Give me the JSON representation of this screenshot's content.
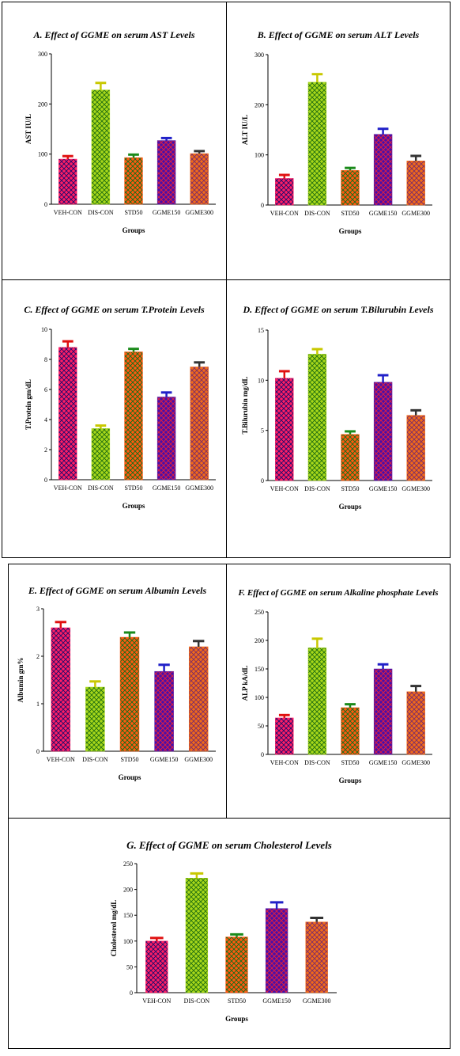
{
  "chart_data": [
    {
      "id": "A",
      "type": "bar",
      "title": "A. Effect of GGME on serum AST Levels",
      "ylabel": "AST IU/L",
      "xlabel": "Groups",
      "categories": [
        "VEH-CON",
        "DIS-CON",
        "STD50",
        "GGME150",
        "GGME300"
      ],
      "values": [
        90,
        228,
        93,
        127,
        101
      ],
      "errors": [
        6,
        14,
        6,
        5,
        5
      ],
      "ylim": [
        0,
        300
      ],
      "yticks": [
        "0",
        "100",
        "200",
        "300"
      ]
    },
    {
      "id": "B",
      "type": "bar",
      "title": "B. Effect of GGME on serum ALT Levels",
      "ylabel": "ALT IU/L",
      "xlabel": "Groups",
      "categories": [
        "VEH-CON",
        "DIS-CON",
        "STD50",
        "GGME150",
        "GGME300"
      ],
      "values": [
        53,
        245,
        69,
        141,
        88
      ],
      "errors": [
        7,
        16,
        5,
        11,
        10
      ],
      "ylim": [
        0,
        300
      ],
      "yticks": [
        "0",
        "100",
        "200",
        "300"
      ]
    },
    {
      "id": "C",
      "type": "bar",
      "title": "C. Effect of GGME on serum T.Protein Levels",
      "ylabel": "T.Protein gm/dL",
      "xlabel": "Groups",
      "categories": [
        "VEH-CON",
        "DIS-CON",
        "STD50",
        "GGME150",
        "GGME300"
      ],
      "values": [
        8.8,
        3.4,
        8.5,
        5.5,
        7.5
      ],
      "errors": [
        0.4,
        0.2,
        0.2,
        0.3,
        0.3
      ],
      "ylim": [
        0,
        10
      ],
      "yticks": [
        "0",
        "2",
        "4",
        "6",
        "8",
        "10"
      ]
    },
    {
      "id": "D",
      "type": "bar",
      "title": "D. Effect of GGME on serum T.Bilurubin Levels",
      "ylabel": "T.Bilurubin mg/dL",
      "xlabel": "Groups",
      "categories": [
        "VEH-CON",
        "DIS-CON",
        "STD50",
        "GGME150",
        "GGME300"
      ],
      "values": [
        10.2,
        12.6,
        4.6,
        9.8,
        6.5
      ],
      "errors": [
        0.7,
        0.5,
        0.3,
        0.7,
        0.5
      ],
      "ylim": [
        0,
        15
      ],
      "yticks": [
        "0",
        "5",
        "10",
        "15"
      ]
    },
    {
      "id": "E",
      "type": "bar",
      "title": "E. Effect of GGME on serum Albumin Levels",
      "ylabel": "Albumin gm%",
      "xlabel": "Groups",
      "categories": [
        "VEH-CON",
        "DIS-CON",
        "STD50",
        "GGME150",
        "GGME300"
      ],
      "values": [
        2.6,
        1.35,
        2.4,
        1.68,
        2.2
      ],
      "errors": [
        0.12,
        0.12,
        0.1,
        0.14,
        0.12
      ],
      "ylim": [
        0,
        3
      ],
      "yticks": [
        "0",
        "1",
        "2",
        "3"
      ]
    },
    {
      "id": "F",
      "type": "bar",
      "title": "F. Effect of GGME on serum Alkaline phosphate Levels",
      "ylabel": "ALP kA/dL",
      "xlabel": "Groups",
      "categories": [
        "VEH-CON",
        "DIS-CON",
        "STD50",
        "GGME150",
        "GGME300"
      ],
      "values": [
        64,
        187,
        82,
        150,
        110
      ],
      "errors": [
        5,
        16,
        6,
        8,
        10
      ],
      "ylim": [
        0,
        250
      ],
      "yticks": [
        "0",
        "50",
        "100",
        "150",
        "200",
        "250"
      ]
    },
    {
      "id": "G",
      "type": "bar",
      "title": "G. Effect of GGME on serum Cholesterol Levels",
      "ylabel": "Cholesterol mg/dL",
      "xlabel": "Groups",
      "categories": [
        "VEH-CON",
        "DIS-CON",
        "STD50",
        "GGME150",
        "GGME300"
      ],
      "values": [
        100,
        222,
        108,
        163,
        137
      ],
      "errors": [
        6,
        9,
        5,
        12,
        8
      ],
      "ylim": [
        0,
        250
      ],
      "yticks": [
        "0",
        "50",
        "100",
        "150",
        "200",
        "250"
      ]
    }
  ],
  "colors": {
    "bars": [
      {
        "fill": "#ff1e64",
        "pattern": "#1a0a6e",
        "cap": "#e01010"
      },
      {
        "fill": "#a8d81a",
        "pattern": "#1f6e10",
        "cap": "#c8c800"
      },
      {
        "fill": "#ff5a10",
        "pattern": "#0f6e1a",
        "cap": "#1a8a1a"
      },
      {
        "fill": "#4a0fa8",
        "pattern": "#e8203a",
        "cap": "#2020c8"
      },
      {
        "fill": "#f06a1a",
        "pattern": "#7a2a6a",
        "cap": "#333333"
      }
    ]
  }
}
